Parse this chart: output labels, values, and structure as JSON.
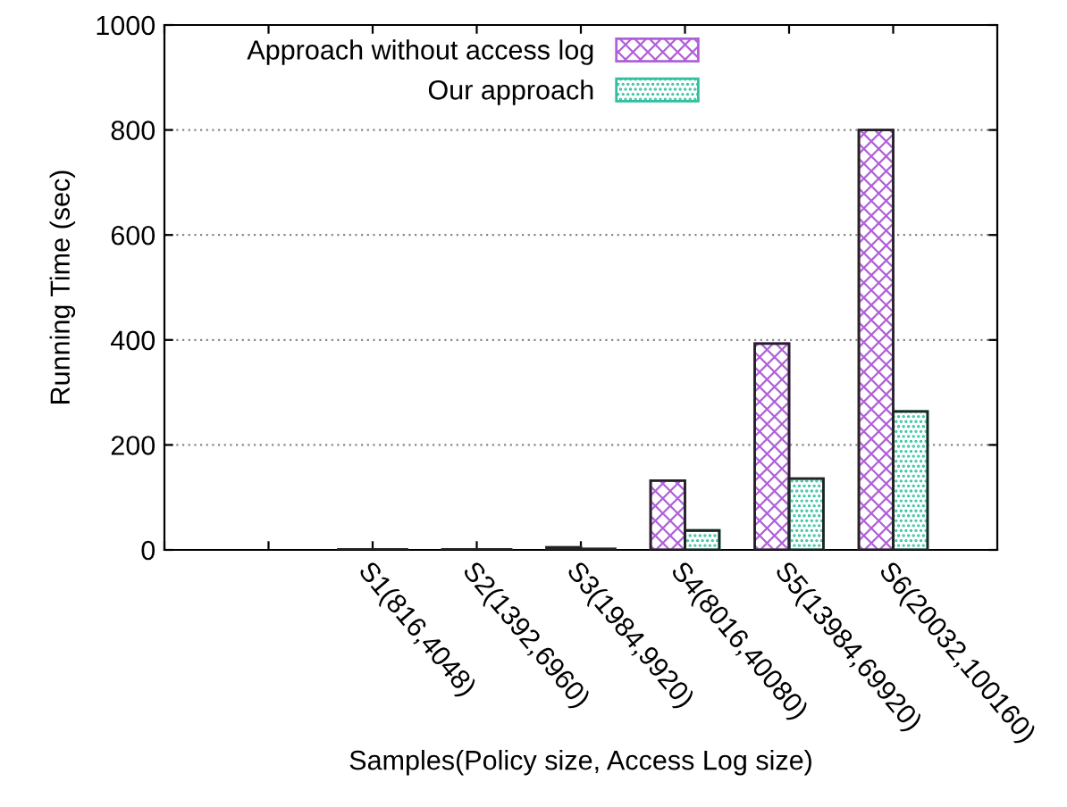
{
  "chart_data": {
    "type": "bar",
    "xlabel": "Samples(Policy size, Access Log size)",
    "ylabel": "Running Time (sec)",
    "categories": [
      null,
      null,
      "S1(816,4048)",
      "S2(1392,6960)",
      "S3(1984,9920)",
      "S4(8016,40080)",
      "S5(13984,69920)",
      "S6(20032,100160)"
    ],
    "series": [
      {
        "name": "Approach without access log",
        "color": "#b060d8",
        "values": [
          null,
          null,
          1,
          1,
          5,
          132,
          393,
          800
        ]
      },
      {
        "name": "Our approach",
        "color": "#30c0a0",
        "values": [
          null,
          null,
          1,
          1,
          2,
          37,
          136,
          264
        ]
      }
    ],
    "ylim": [
      0,
      1000
    ],
    "yticks": [
      0,
      200,
      400,
      600,
      800,
      1000
    ],
    "grid": "y",
    "legend": "top"
  }
}
